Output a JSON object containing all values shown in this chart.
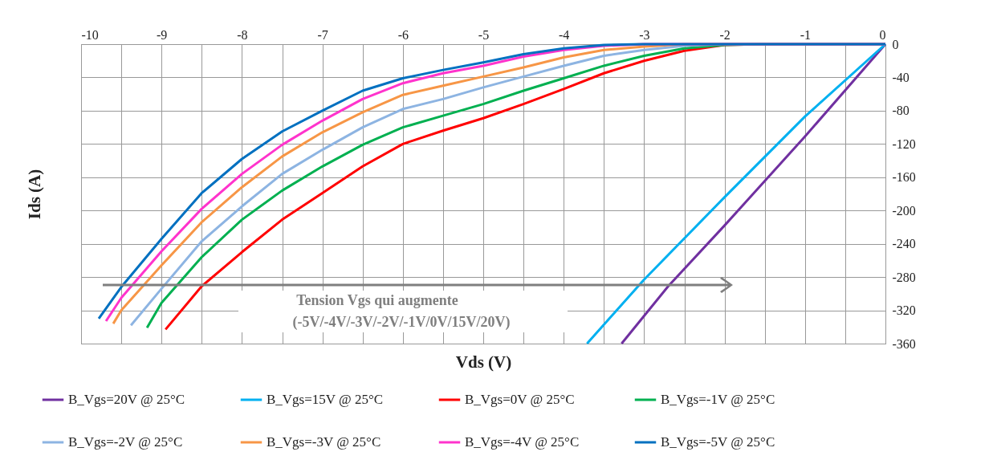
{
  "chart_data": {
    "type": "line",
    "xlabel": "Vds (V)",
    "ylabel": "Ids (A)",
    "xlim": [
      -10,
      0
    ],
    "ylim": [
      -360,
      0
    ],
    "xticks": [
      -10,
      {
        "value": -9.5,
        "label": null
      },
      -9,
      {
        "value": -8.5,
        "label": null
      },
      -8,
      {
        "value": -7.5,
        "label": null
      },
      -7,
      {
        "value": -6.5,
        "label": null
      },
      -6,
      {
        "value": -5.5,
        "label": null
      },
      -5,
      {
        "value": -4.5,
        "label": null
      },
      -4,
      {
        "value": -3.5,
        "label": null
      },
      -3,
      {
        "value": -2.5,
        "label": null
      },
      -2,
      {
        "value": -1.5,
        "label": null
      },
      -1,
      {
        "value": -0.5,
        "label": null
      },
      0
    ],
    "yticks": [
      -360,
      -320,
      -280,
      -240,
      -200,
      -160,
      -120,
      -80,
      -40,
      0
    ],
    "grid": true,
    "legend": "bottom",
    "marker": "none",
    "line_style": "solid",
    "annotations": [
      "Tension Vgs qui augmente",
      "(-5V/-4V/-3V/-2V/-1V/0V/15V/20V)"
    ],
    "series": [
      {
        "name": "B_Vgs=20V @ 25°C",
        "color": "#7030a0",
        "x": [
          -3.28,
          -2.7,
          -2.0,
          -1.0,
          0
        ],
        "values": [
          -360,
          -291,
          -218,
          -111,
          0
        ]
      },
      {
        "name": "B_Vgs=15V @ 25°C",
        "color": "#00b0f0",
        "x": [
          -3.71,
          -3.0,
          -2.0,
          -1.0,
          0
        ],
        "values": [
          -360,
          -283,
          -184,
          -87,
          0
        ]
      },
      {
        "name": "B_Vgs=0V @ 25°C",
        "color": "#ff0000",
        "x": [
          -8.95,
          -8.5,
          -8.0,
          -7.5,
          -7.0,
          -6.5,
          -6.0,
          -5.5,
          -5.0,
          -4.5,
          -4.0,
          -3.5,
          -3.0,
          -2.5,
          -2.0,
          -1.5,
          0
        ],
        "values": [
          -343,
          -291,
          -250,
          -211,
          -179,
          -147,
          -120,
          -104,
          -89,
          -72,
          -54,
          -35,
          -20,
          -8,
          -1,
          0,
          0
        ]
      },
      {
        "name": "B_Vgs=-1V @ 25°C",
        "color": "#00b050",
        "x": [
          -9.18,
          -9.0,
          -8.5,
          -8.0,
          -7.5,
          -7.0,
          -6.5,
          -6.0,
          -5.5,
          -5.0,
          -4.5,
          -4.0,
          -3.5,
          -3.0,
          -2.5,
          -2.0,
          -1.5,
          0
        ],
        "values": [
          -341,
          -311,
          -256,
          -211,
          -176,
          -147,
          -121,
          -100,
          -86,
          -72,
          -56,
          -41,
          -26,
          -14,
          -5,
          -1,
          0,
          0
        ]
      },
      {
        "name": "B_Vgs=-2V @ 25°C",
        "color": "#8db4e2",
        "x": [
          -9.38,
          -9.0,
          -8.5,
          -8.0,
          -7.5,
          -7.0,
          -6.5,
          -6.0,
          -5.5,
          -5.0,
          -4.5,
          -4.0,
          -3.5,
          -3.0,
          -2.5,
          -2.0,
          0
        ],
        "values": [
          -338,
          -294,
          -237,
          -195,
          -156,
          -127,
          -100,
          -78,
          -66,
          -52,
          -39,
          -26,
          -14,
          -7,
          -2,
          0,
          0
        ]
      },
      {
        "name": "B_Vgs=-3V @ 25°C",
        "color": "#f79646",
        "x": [
          -9.6,
          -9.5,
          -9.0,
          -8.5,
          -8.0,
          -7.5,
          -7.0,
          -6.5,
          -6.0,
          -5.5,
          -5.0,
          -4.5,
          -4.0,
          -3.5,
          -3.0,
          -2.5,
          0
        ],
        "values": [
          -336,
          -320,
          -266,
          -214,
          -172,
          -135,
          -106,
          -82,
          -61,
          -50,
          -39,
          -28,
          -16,
          -7,
          -3,
          0,
          0
        ]
      },
      {
        "name": "B_Vgs=-4V @ 25°C",
        "color": "#ff33cc",
        "x": [
          -9.69,
          -9.5,
          -9.0,
          -8.5,
          -8.0,
          -7.5,
          -7.0,
          -6.5,
          -6.0,
          -5.5,
          -5.0,
          -4.5,
          -4.0,
          -3.5,
          -3.0,
          0
        ],
        "values": [
          -333,
          -305,
          -249,
          -198,
          -156,
          -121,
          -92,
          -66,
          -47,
          -35,
          -26,
          -15,
          -7,
          -2,
          0,
          0
        ]
      },
      {
        "name": "B_Vgs=-5V @ 25°C",
        "color": "#0070c0",
        "x": [
          -9.78,
          -9.5,
          -9.0,
          -8.5,
          -8.0,
          -7.5,
          -7.0,
          -6.5,
          -6.0,
          -5.5,
          -5.0,
          -4.5,
          -4.0,
          -3.5,
          -3.0,
          0
        ],
        "values": [
          -330,
          -292,
          -234,
          -179,
          -138,
          -105,
          -80,
          -56,
          -41,
          -31,
          -22,
          -12,
          -5,
          -1,
          0,
          0
        ]
      }
    ]
  }
}
